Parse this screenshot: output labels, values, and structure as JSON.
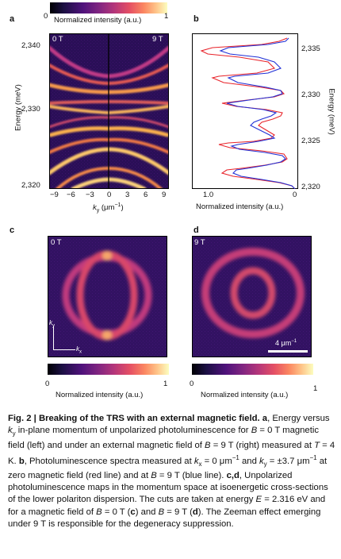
{
  "panel_a": {
    "letter": "a",
    "colorbar": {
      "min": "0",
      "max": "1",
      "label": "Normalized intensity (a.u.)"
    },
    "left_tag": "0 T",
    "right_tag": "9 T",
    "ylabel": "Energy (meV)",
    "yticks": [
      "2,340",
      "2,330",
      "2,320"
    ],
    "xlabel": "k",
    "xlabel_sub": "y",
    "xlabel_unit": " (μm",
    "xlabel_exp": "−1",
    "xlabel_close": ")",
    "xticks": [
      "−9",
      "−6",
      "−3",
      "0",
      "3",
      "6",
      "9"
    ]
  },
  "panel_b": {
    "letter": "b",
    "ylabel": "Energy (meV)",
    "yticks": [
      "2,335",
      "2,330",
      "2,325",
      "2,320"
    ],
    "xticks": [
      "1.0",
      "0"
    ],
    "xlabel": "Normalized intensity (a.u.)",
    "colors": {
      "zero_field": "#e8232a",
      "nine_tesla": "#1f2fd6"
    }
  },
  "panel_c": {
    "letter": "c",
    "tag": "0 T",
    "axis_x": "k",
    "axis_x_sub": "x",
    "axis_y": "k",
    "axis_y_sub": "y",
    "colorbar": {
      "min": "0",
      "max": "1",
      "label": "Normalized intensity (a.u.)"
    }
  },
  "panel_d": {
    "letter": "d",
    "tag": "9 T",
    "scalebar": "4 μm",
    "scalebar_exp": "−1",
    "colorbar": {
      "min": "0",
      "max": "1",
      "label": "Normalized intensity (a.u.)"
    }
  },
  "caption": {
    "title": "Fig. 2 | Breaking of the TRS with an external magnetic field.",
    "a": "a",
    "t1": ", Energy versus ",
    "ky": "k",
    "ky_sub": "y",
    "t2": " in-plane momentum of unpolarized photoluminescence for ",
    "t3": "B",
    "t4": " = 0 T magnetic field (left) and under an external magnetic field of ",
    "t5": "B",
    "t6": " = 9 T (right) measured at ",
    "t7": "T",
    "t8": " = 4 K. ",
    "b": "b",
    "t9": ", Photoluminescence spectra measured at ",
    "kx": "k",
    "kx_sub": "x",
    "t10": " = 0 μm",
    "t10_exp": "−1",
    "t11": " and ",
    "ky2": "k",
    "ky2_sub": "y",
    "t12": " = ±3.7 μm",
    "t12_exp": "−1",
    "t13": " at zero magnetic field (red line) and at ",
    "t14": "B",
    "t15": " = 9 T (blue line). ",
    "cd": "c,d",
    "t16": ", Unpolarized photoluminescence maps in the momentum space at isoenergetic cross-sections of the lower polariton dispersion. The cuts are taken at energy ",
    "t17": "E",
    "t18": " = 2.316 eV and for a magnetic field of ",
    "t19": "B",
    "t20": " = 0 T (",
    "c": "c",
    "t21": ") and ",
    "t22": "B",
    "t23": " = 9 T (",
    "d": "d",
    "t24": "). The Zeeman effect emerging under 9 T is responsible for the degeneracy suppression."
  }
}
